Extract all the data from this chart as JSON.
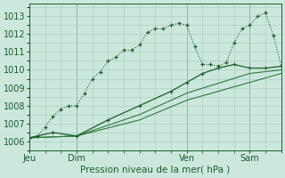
{
  "background_color": "#cce8dd",
  "grid_color": "#aacfbf",
  "line_color_dark": "#1a5c2a",
  "line_color_mid": "#2d7a3a",
  "xlabel": "Pression niveau de la mer( hPa )",
  "ylim": [
    1005.5,
    1013.7
  ],
  "yticks": [
    1006,
    1007,
    1008,
    1009,
    1010,
    1011,
    1012,
    1013
  ],
  "day_labels": [
    "Jeu",
    "Dim",
    "Ven",
    "Sam"
  ],
  "day_positions": [
    0,
    3,
    10,
    14
  ],
  "xlim": [
    0,
    16
  ],
  "series1_x": [
    0,
    0.5,
    1,
    1.5,
    2,
    2.5,
    3,
    3.5,
    4,
    4.5,
    5,
    5.5,
    6,
    6.5,
    7,
    7.5,
    8,
    8.5,
    9,
    9.5,
    10,
    10.5,
    11,
    11.5,
    12,
    12.5,
    13,
    13.5,
    14,
    14.5,
    15,
    15.5,
    16
  ],
  "series1_y": [
    1006.2,
    1006.3,
    1006.8,
    1007.4,
    1007.8,
    1008.0,
    1008.0,
    1008.7,
    1009.5,
    1009.9,
    1010.5,
    1010.7,
    1011.1,
    1011.1,
    1011.4,
    1012.1,
    1012.3,
    1012.3,
    1012.5,
    1012.6,
    1012.5,
    1011.3,
    1010.3,
    1010.3,
    1010.2,
    1010.4,
    1011.5,
    1012.3,
    1012.5,
    1013.0,
    1013.2,
    1011.9,
    1010.2
  ],
  "series2_x": [
    0,
    1.5,
    3,
    5,
    7,
    9,
    10,
    11,
    12,
    13,
    14,
    15,
    16
  ],
  "series2_y": [
    1006.2,
    1006.5,
    1006.3,
    1007.2,
    1008.0,
    1008.8,
    1009.3,
    1009.8,
    1010.1,
    1010.3,
    1010.1,
    1010.1,
    1010.2
  ],
  "series3_x": [
    0,
    3,
    7,
    10,
    14,
    16
  ],
  "series3_y": [
    1006.2,
    1006.3,
    1007.5,
    1008.7,
    1009.8,
    1010.0
  ],
  "series4_x": [
    0,
    3,
    7,
    10,
    14,
    16
  ],
  "series4_y": [
    1006.2,
    1006.3,
    1007.2,
    1008.3,
    1009.3,
    1009.8
  ]
}
